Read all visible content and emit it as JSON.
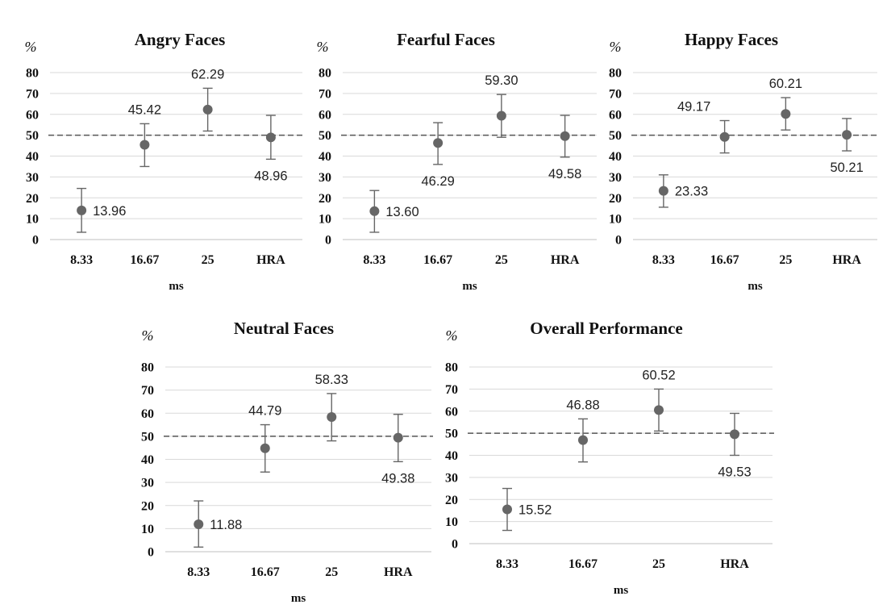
{
  "figure": {
    "y_unit": "%",
    "xlabel": "ms",
    "reference_line": 50,
    "colors": {
      "marker": "#666666",
      "error_bar": "#666666",
      "reference": "#555555",
      "grid": "#d9d9d9"
    }
  },
  "chart_data": [
    {
      "type": "scatter",
      "title": "Angry Faces",
      "ylabel": "%",
      "xlabel": "ms",
      "categories": [
        "8.33",
        "16.67",
        "25",
        "HRA"
      ],
      "values": [
        13.96,
        45.42,
        62.29,
        48.96
      ],
      "error_low": [
        3.5,
        35.0,
        52.0,
        38.5
      ],
      "error_high": [
        24.5,
        55.5,
        72.5,
        59.5
      ],
      "labels": [
        "13.96",
        "45.42",
        "62.29",
        "48.96"
      ],
      "label_side": [
        "right",
        "above",
        "above",
        "below"
      ],
      "yticks": [
        0,
        10,
        20,
        30,
        40,
        50,
        60,
        70,
        80
      ],
      "ylim": [
        0,
        80
      ],
      "grid": true
    },
    {
      "type": "scatter",
      "title": "Fearful Faces",
      "ylabel": "%",
      "xlabel": "ms",
      "categories": [
        "8.33",
        "16.67",
        "25",
        "HRA"
      ],
      "values": [
        13.6,
        46.29,
        59.3,
        49.58
      ],
      "error_low": [
        3.5,
        36.0,
        49.0,
        39.5
      ],
      "error_high": [
        23.5,
        56.0,
        69.5,
        59.5
      ],
      "labels": [
        "13.60",
        "46.29",
        "59.30",
        "49.58"
      ],
      "label_side": [
        "right",
        "below",
        "above",
        "below"
      ],
      "yticks": [
        0,
        10,
        20,
        30,
        40,
        50,
        60,
        70,
        80
      ],
      "ylim": [
        0,
        80
      ],
      "grid": true
    },
    {
      "type": "scatter",
      "title": "Happy Faces",
      "ylabel": "%",
      "xlabel": "ms",
      "categories": [
        "8.33",
        "16.67",
        "25",
        "HRA"
      ],
      "values": [
        23.33,
        49.17,
        60.21,
        50.21
      ],
      "error_low": [
        15.5,
        41.5,
        52.5,
        42.5
      ],
      "error_high": [
        31.0,
        57.0,
        68.0,
        58.0
      ],
      "labels": [
        "23.33",
        "49.17",
        "60.21",
        "50.21"
      ],
      "label_side": [
        "right",
        "above-left",
        "above",
        "below"
      ],
      "yticks": [
        0,
        10,
        20,
        30,
        40,
        50,
        60,
        70,
        80
      ],
      "ylim": [
        0,
        80
      ],
      "grid": true
    },
    {
      "type": "scatter",
      "title": "Neutral Faces",
      "ylabel": "%",
      "xlabel": "ms",
      "categories": [
        "8.33",
        "16.67",
        "25",
        "HRA"
      ],
      "values": [
        11.88,
        44.79,
        58.33,
        49.38
      ],
      "error_low": [
        2.0,
        34.5,
        48.0,
        39.0
      ],
      "error_high": [
        22.0,
        55.0,
        68.5,
        59.5
      ],
      "labels": [
        "11.88",
        "44.79",
        "58.33",
        "49.38"
      ],
      "label_side": [
        "right",
        "above",
        "above",
        "below"
      ],
      "yticks": [
        0,
        10,
        20,
        30,
        40,
        50,
        60,
        70,
        80
      ],
      "ylim": [
        0,
        80
      ],
      "grid": true
    },
    {
      "type": "scatter",
      "title": "Overall Performance",
      "ylabel": "%",
      "xlabel": "ms",
      "categories": [
        "8.33",
        "16.67",
        "25",
        "HRA"
      ],
      "values": [
        15.52,
        46.88,
        60.52,
        49.53
      ],
      "error_low": [
        6.0,
        37.0,
        51.0,
        40.0
      ],
      "error_high": [
        25.0,
        56.5,
        70.0,
        59.0
      ],
      "labels": [
        "15.52",
        "46.88",
        "60.52",
        "49.53"
      ],
      "label_side": [
        "right",
        "above",
        "above",
        "below"
      ],
      "yticks": [
        0,
        10,
        20,
        30,
        40,
        50,
        60,
        70,
        80
      ],
      "ylim": [
        0,
        80
      ],
      "grid": true
    }
  ]
}
